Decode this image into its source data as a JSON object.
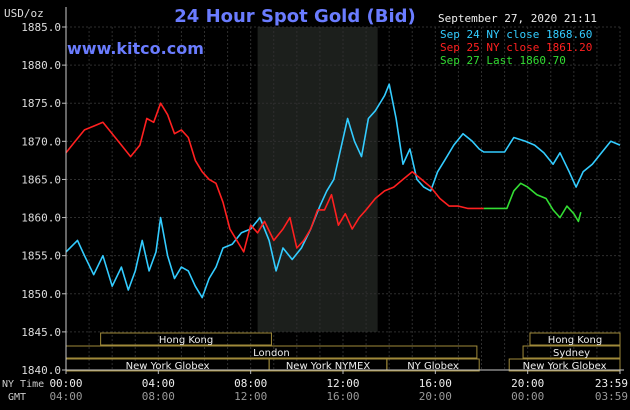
{
  "chart_data": {
    "type": "line",
    "title": "24 Hour Spot Gold (Bid)",
    "website": "www.kitco.com",
    "ylabel": "USD/oz",
    "date_label": "September 27, 2020 21:11",
    "ylim": [
      1840.0,
      1885.0
    ],
    "y_ticks": [
      "1885.0",
      "1880.0",
      "1875.0",
      "1870.0",
      "1865.0",
      "1860.0",
      "1855.0",
      "1850.0",
      "1845.0",
      "1840.0"
    ],
    "x_hours": [
      0,
      24
    ],
    "x_ticks": [
      {
        "hour": 0,
        "ny": "00:00",
        "gmt": "04:00"
      },
      {
        "hour": 4,
        "ny": "04:00",
        "gmt": "08:00"
      },
      {
        "hour": 8,
        "ny": "08:00",
        "gmt": "12:00"
      },
      {
        "hour": 12,
        "ny": "12:00",
        "gmt": "16:00"
      },
      {
        "hour": 16,
        "ny": "16:00",
        "gmt": "20:00"
      },
      {
        "hour": 20,
        "ny": "20:00",
        "gmt": "00:00"
      },
      {
        "hour": 24,
        "ny": "23:59",
        "gmt": "03:59"
      }
    ],
    "time_axis_labels": {
      "ny": "NY Time",
      "gmt": "GMT"
    },
    "grid": true,
    "shaded_hours": [
      8.3,
      13.5
    ],
    "legend_position": "top-right",
    "series": [
      {
        "name": "Sep 24 NY close 1868.60",
        "color": "#33ccff",
        "points": [
          [
            0,
            1855.5
          ],
          [
            0.5,
            1857.0
          ],
          [
            0.8,
            1855.0
          ],
          [
            1.2,
            1852.5
          ],
          [
            1.6,
            1855.0
          ],
          [
            2.0,
            1851.0
          ],
          [
            2.4,
            1853.5
          ],
          [
            2.7,
            1850.5
          ],
          [
            3.0,
            1853.0
          ],
          [
            3.3,
            1857.0
          ],
          [
            3.6,
            1853.0
          ],
          [
            3.9,
            1855.5
          ],
          [
            4.1,
            1860.0
          ],
          [
            4.4,
            1855.0
          ],
          [
            4.7,
            1852.0
          ],
          [
            5.0,
            1853.5
          ],
          [
            5.3,
            1853.0
          ],
          [
            5.6,
            1851.0
          ],
          [
            5.9,
            1849.5
          ],
          [
            6.2,
            1852.0
          ],
          [
            6.5,
            1853.5
          ],
          [
            6.8,
            1856.0
          ],
          [
            7.2,
            1856.5
          ],
          [
            7.6,
            1858.0
          ],
          [
            8.0,
            1858.5
          ],
          [
            8.4,
            1860.0
          ],
          [
            8.8,
            1857.0
          ],
          [
            9.1,
            1853.0
          ],
          [
            9.4,
            1856.0
          ],
          [
            9.8,
            1854.5
          ],
          [
            10.2,
            1856.0
          ],
          [
            10.6,
            1858.5
          ],
          [
            11.0,
            1861.5
          ],
          [
            11.3,
            1863.5
          ],
          [
            11.6,
            1865.0
          ],
          [
            11.9,
            1869.0
          ],
          [
            12.2,
            1873.0
          ],
          [
            12.5,
            1870.0
          ],
          [
            12.8,
            1868.0
          ],
          [
            13.1,
            1873.0
          ],
          [
            13.4,
            1874.0
          ],
          [
            13.8,
            1876.0
          ],
          [
            14.0,
            1877.5
          ],
          [
            14.3,
            1873.0
          ],
          [
            14.6,
            1867.0
          ],
          [
            14.9,
            1869.0
          ],
          [
            15.2,
            1865.0
          ],
          [
            15.5,
            1864.0
          ],
          [
            15.8,
            1863.5
          ],
          [
            16.1,
            1866.0
          ],
          [
            16.4,
            1867.5
          ],
          [
            16.8,
            1869.5
          ],
          [
            17.2,
            1871.0
          ],
          [
            17.6,
            1870.0
          ],
          [
            17.9,
            1869.0
          ],
          [
            18.1,
            1868.6
          ],
          [
            19.0,
            1868.6
          ],
          [
            19.4,
            1870.5
          ],
          [
            19.9,
            1870.0
          ],
          [
            20.3,
            1869.5
          ],
          [
            20.7,
            1868.5
          ],
          [
            21.1,
            1867.0
          ],
          [
            21.4,
            1868.5
          ],
          [
            21.8,
            1866.0
          ],
          [
            22.1,
            1864.0
          ],
          [
            22.4,
            1866.0
          ],
          [
            22.8,
            1867.0
          ],
          [
            23.2,
            1868.5
          ],
          [
            23.6,
            1870.0
          ],
          [
            24.0,
            1869.5
          ]
        ]
      },
      {
        "name": "Sep 25 NY close 1861.20",
        "color": "#ff2020",
        "points": [
          [
            0,
            1868.5
          ],
          [
            0.4,
            1870.0
          ],
          [
            0.8,
            1871.5
          ],
          [
            1.2,
            1872.0
          ],
          [
            1.6,
            1872.5
          ],
          [
            2.0,
            1871.0
          ],
          [
            2.4,
            1869.5
          ],
          [
            2.8,
            1868.0
          ],
          [
            3.2,
            1869.5
          ],
          [
            3.5,
            1873.0
          ],
          [
            3.8,
            1872.5
          ],
          [
            4.1,
            1875.0
          ],
          [
            4.4,
            1873.5
          ],
          [
            4.7,
            1871.0
          ],
          [
            5.0,
            1871.5
          ],
          [
            5.3,
            1870.5
          ],
          [
            5.6,
            1867.5
          ],
          [
            5.9,
            1866.0
          ],
          [
            6.2,
            1865.0
          ],
          [
            6.5,
            1864.5
          ],
          [
            6.8,
            1862.0
          ],
          [
            7.1,
            1858.5
          ],
          [
            7.4,
            1857.0
          ],
          [
            7.7,
            1855.5
          ],
          [
            8.0,
            1859.0
          ],
          [
            8.3,
            1858.0
          ],
          [
            8.6,
            1859.5
          ],
          [
            9.0,
            1857.0
          ],
          [
            9.4,
            1858.5
          ],
          [
            9.7,
            1860.0
          ],
          [
            10.0,
            1856.0
          ],
          [
            10.3,
            1857.0
          ],
          [
            10.6,
            1858.5
          ],
          [
            10.9,
            1861.0
          ],
          [
            11.2,
            1861.0
          ],
          [
            11.5,
            1863.0
          ],
          [
            11.8,
            1859.0
          ],
          [
            12.1,
            1860.5
          ],
          [
            12.4,
            1858.5
          ],
          [
            12.7,
            1860.0
          ],
          [
            13.0,
            1861.0
          ],
          [
            13.4,
            1862.5
          ],
          [
            13.8,
            1863.5
          ],
          [
            14.2,
            1864.0
          ],
          [
            14.6,
            1865.0
          ],
          [
            15.0,
            1866.0
          ],
          [
            15.4,
            1865.0
          ],
          [
            15.8,
            1864.0
          ],
          [
            16.2,
            1862.5
          ],
          [
            16.6,
            1861.5
          ],
          [
            17.0,
            1861.5
          ],
          [
            17.4,
            1861.2
          ],
          [
            18.1,
            1861.2
          ]
        ]
      },
      {
        "name": "Sep 27 Last 1860.70",
        "color": "#33dd33",
        "points": [
          [
            18.1,
            1861.2
          ],
          [
            19.1,
            1861.2
          ],
          [
            19.4,
            1863.5
          ],
          [
            19.7,
            1864.5
          ],
          [
            20.0,
            1864.0
          ],
          [
            20.4,
            1863.0
          ],
          [
            20.8,
            1862.5
          ],
          [
            21.1,
            1861.0
          ],
          [
            21.4,
            1860.0
          ],
          [
            21.7,
            1861.5
          ],
          [
            22.0,
            1860.5
          ],
          [
            22.2,
            1859.5
          ],
          [
            22.3,
            1860.7
          ]
        ]
      }
    ],
    "market_sessions": [
      {
        "name": "Hong Kong",
        "start": 1.5,
        "end": 8.9,
        "row": 0
      },
      {
        "name": "London",
        "start": 0,
        "end": 17.8,
        "row": 1
      },
      {
        "name": "New York Globex",
        "start": 0,
        "end": 8.8,
        "row": 2
      },
      {
        "name": "New York NYMEX",
        "start": 8.8,
        "end": 13.9,
        "row": 2
      },
      {
        "name": "NY Globex",
        "start": 13.9,
        "end": 17.9,
        "row": 2
      },
      {
        "name": "Hong Kong",
        "start": 20.1,
        "end": 24.0,
        "row": 0
      },
      {
        "name": "Sydney",
        "start": 19.8,
        "end": 24.0,
        "row": 1
      },
      {
        "name": "New York Globex",
        "start": 19.2,
        "end": 24.0,
        "row": 2
      }
    ]
  }
}
